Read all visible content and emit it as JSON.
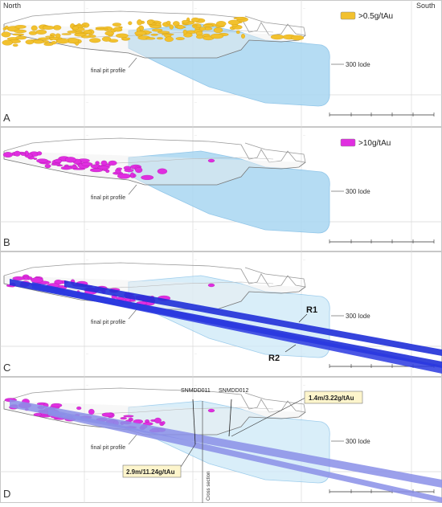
{
  "directions": {
    "north": "North",
    "south": "South"
  },
  "panels": [
    {
      "letter": "A",
      "legend": ">0.5g/tAu",
      "legend_color": "#f2c12e",
      "ore_color": "#f2c12e",
      "pit_label": "final pit profile",
      "lode_label": "300 lode"
    },
    {
      "letter": "B",
      "legend": ">10g/tAu",
      "legend_color": "#e02ee0",
      "ore_color": "#e02ee0",
      "pit_label": "final pit profile",
      "lode_label": "300 lode"
    },
    {
      "letter": "C",
      "pit_label": "final pit profile",
      "lode_label": "300 lode",
      "reefs": [
        "R1",
        "R2"
      ]
    },
    {
      "letter": "D",
      "pit_label": "final pit profile",
      "lode_label": "300 lode",
      "holes": [
        "SNMDD011",
        "SNMDD012"
      ],
      "intercepts": [
        "1.4m/3.22g/tAu",
        "2.9m/11.24g/tAu"
      ],
      "cross_section": "Cross section"
    }
  ],
  "colors": {
    "lode_fill": "#a9d7f2",
    "lode_fill_light": "#cde9f8",
    "reef_color": "#2030d8",
    "reef_color_light": "#8a8fe8",
    "magenta": "#e02ee0",
    "gold": "#f2c12e",
    "callout_fill": "#fdf5cc"
  }
}
